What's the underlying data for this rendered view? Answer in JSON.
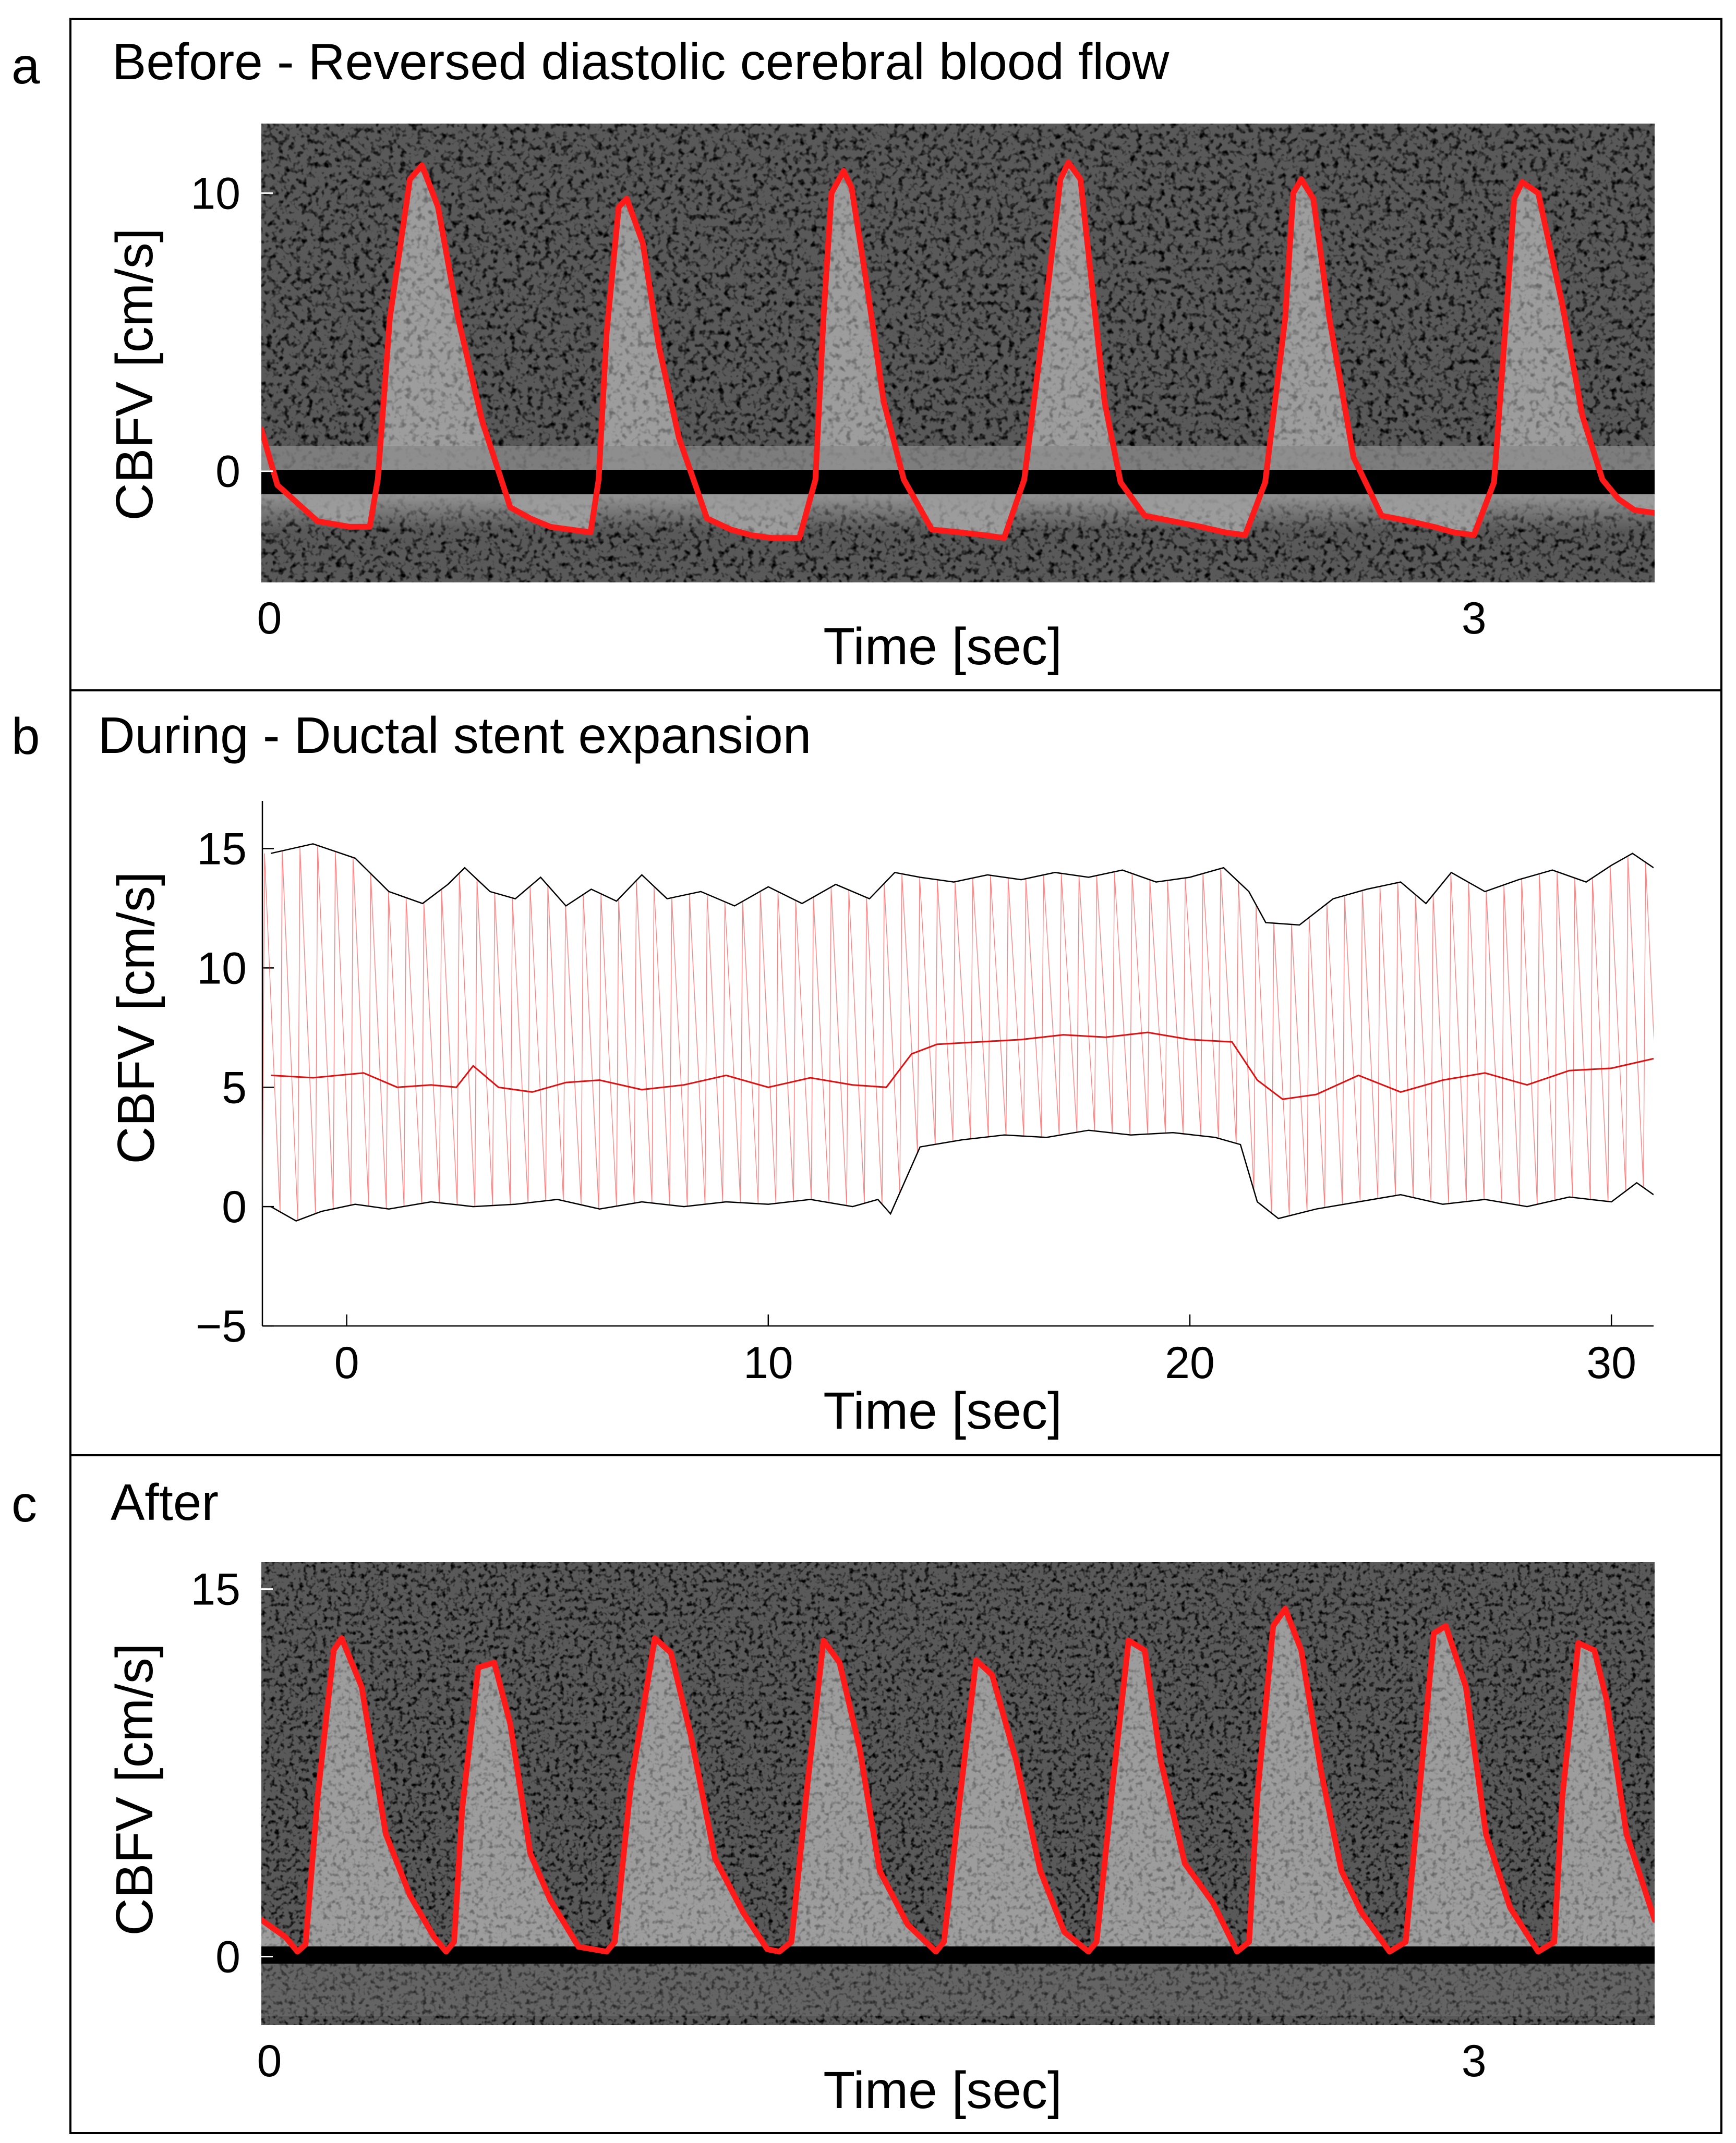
{
  "panels": {
    "a": {
      "letter": "a",
      "title": "Before - Reversed diastolic cerebral blood flow",
      "xlabel": "Time [sec]",
      "ylabel": "CBFV [cm/s]"
    },
    "b": {
      "letter": "b",
      "title": "During - Ductal stent expansion",
      "xlabel": "Time [sec]",
      "ylabel": "CBFV [cm/s]"
    },
    "c": {
      "letter": "c",
      "title": "After",
      "xlabel": "Time [sec]",
      "ylabel": "CBFV [cm/s]"
    }
  },
  "colors": {
    "trace": "#ff1a1a",
    "envelope": "#000000",
    "background": "#000000"
  },
  "chart_data": [
    {
      "id": "a",
      "type": "line",
      "title": "Before - Reversed diastolic cerebral blood flow",
      "xlabel": "Time [sec]",
      "ylabel": "CBFV [cm/s]",
      "xlim": [
        -0.02,
        3.45
      ],
      "ylim": [
        -4,
        12.5
      ],
      "xticks": [
        0,
        3
      ],
      "yticks": [
        0,
        10
      ],
      "background": "Doppler spectrogram",
      "series": [
        {
          "name": "Maximum velocity envelope",
          "x": [
            -0.02,
            0.02,
            0.12,
            0.2,
            0.25,
            0.27,
            0.3,
            0.35,
            0.38,
            0.42,
            0.47,
            0.53,
            0.6,
            0.65,
            0.7,
            0.75,
            0.8,
            0.82,
            0.84,
            0.87,
            0.89,
            0.93,
            0.97,
            1.02,
            1.09,
            1.15,
            1.2,
            1.25,
            1.32,
            1.36,
            1.38,
            1.4,
            1.43,
            1.45,
            1.49,
            1.53,
            1.58,
            1.65,
            1.72,
            1.78,
            1.83,
            1.88,
            1.93,
            1.97,
            1.99,
            2.02,
            2.05,
            2.08,
            2.12,
            2.18,
            2.25,
            2.32,
            2.38,
            2.43,
            2.48,
            2.53,
            2.55,
            2.57,
            2.6,
            2.64,
            2.7,
            2.77,
            2.84,
            2.9,
            2.95,
            3.0,
            3.05,
            3.08,
            3.1,
            3.12,
            3.16,
            3.22,
            3.27,
            3.32,
            3.36,
            3.4,
            3.45
          ],
          "y": [
            1.5,
            -0.5,
            -1.8,
            -2.0,
            -2.0,
            -0.3,
            5.5,
            10.5,
            11.0,
            9.5,
            5.5,
            1.8,
            -1.3,
            -1.7,
            -2.0,
            -2.1,
            -2.2,
            -0.3,
            5.0,
            9.5,
            9.8,
            8.2,
            4.5,
            1.2,
            -1.7,
            -2.1,
            -2.3,
            -2.4,
            -2.4,
            -0.3,
            5.5,
            10.0,
            10.8,
            10.2,
            6.5,
            2.5,
            -0.3,
            -2.1,
            -2.2,
            -2.3,
            -2.4,
            -0.3,
            5.5,
            10.5,
            11.1,
            10.5,
            6.5,
            2.5,
            -0.4,
            -1.6,
            -1.8,
            -2.0,
            -2.2,
            -2.3,
            -0.4,
            5.5,
            10.0,
            10.5,
            9.8,
            5.5,
            0.5,
            -1.6,
            -1.8,
            -2.0,
            -2.2,
            -2.3,
            -0.4,
            5.5,
            9.8,
            10.4,
            10.0,
            6.0,
            2.0,
            -0.3,
            -1.0,
            -1.4,
            -1.5
          ]
        }
      ]
    },
    {
      "id": "b",
      "type": "line",
      "title": "During - Ductal stent expansion",
      "xlabel": "Time [sec]",
      "ylabel": "CBFV [cm/s]",
      "xlim": [
        -2,
        31
      ],
      "ylim": [
        -5,
        17
      ],
      "xticks": [
        0,
        10,
        20,
        30
      ],
      "yticks": [
        -5,
        0,
        5,
        10,
        15
      ],
      "cardiac_cycle_sec": 0.42,
      "series": [
        {
          "name": "Systolic peak envelope",
          "x": [
            -1.8,
            -0.8,
            0.2,
            1.0,
            1.8,
            2.4,
            2.8,
            3.4,
            4.0,
            4.6,
            5.2,
            5.8,
            6.4,
            7.0,
            7.6,
            8.4,
            9.2,
            10.0,
            10.8,
            11.6,
            12.4,
            13.0,
            13.6,
            14.4,
            15.2,
            16.0,
            16.8,
            17.6,
            18.4,
            19.2,
            20.0,
            20.8,
            21.4,
            21.8,
            22.6,
            23.4,
            24.2,
            25.0,
            25.6,
            26.2,
            27.0,
            27.8,
            28.6,
            29.4,
            30.0,
            30.5,
            31.0
          ],
          "y": [
            14.8,
            15.2,
            14.6,
            13.2,
            12.7,
            13.5,
            14.2,
            13.2,
            12.9,
            13.8,
            12.6,
            13.3,
            12.8,
            13.9,
            12.9,
            13.2,
            12.6,
            13.4,
            12.7,
            13.5,
            12.9,
            14.0,
            13.8,
            13.6,
            13.9,
            13.7,
            14.0,
            13.8,
            14.1,
            13.6,
            13.8,
            14.2,
            13.2,
            11.9,
            11.8,
            12.9,
            13.3,
            13.6,
            12.7,
            14.0,
            13.2,
            13.7,
            14.1,
            13.6,
            14.3,
            14.8,
            14.2
          ]
        },
        {
          "name": "Mean velocity",
          "x": [
            -1.8,
            -0.8,
            0.4,
            1.2,
            2.0,
            2.6,
            3.0,
            3.6,
            4.4,
            5.2,
            6.0,
            7.0,
            8.0,
            9.0,
            10.0,
            11.0,
            12.0,
            12.8,
            13.4,
            14.0,
            15.0,
            16.0,
            17.0,
            18.0,
            19.0,
            20.0,
            21.0,
            21.6,
            22.2,
            23.0,
            24.0,
            25.0,
            26.0,
            27.0,
            28.0,
            29.0,
            30.0,
            31.0
          ],
          "y": [
            5.5,
            5.4,
            5.6,
            5.0,
            5.1,
            5.0,
            5.9,
            5.0,
            4.8,
            5.2,
            5.3,
            4.9,
            5.1,
            5.5,
            5.0,
            5.4,
            5.1,
            5.0,
            6.4,
            6.8,
            6.9,
            7.0,
            7.2,
            7.1,
            7.3,
            7.0,
            6.9,
            5.3,
            4.5,
            4.7,
            5.5,
            4.8,
            5.3,
            5.6,
            5.1,
            5.7,
            5.8,
            6.2
          ]
        },
        {
          "name": "Diastolic minimum envelope",
          "x": [
            -1.8,
            -1.2,
            -0.6,
            0.2,
            1.0,
            2.0,
            3.0,
            4.0,
            5.0,
            6.0,
            7.0,
            8.0,
            9.0,
            10.0,
            11.0,
            12.0,
            12.6,
            12.9,
            13.6,
            14.6,
            15.6,
            16.6,
            17.6,
            18.6,
            19.6,
            20.6,
            21.2,
            21.6,
            22.1,
            23.0,
            24.0,
            25.0,
            26.0,
            27.0,
            28.0,
            29.0,
            30.0,
            30.6,
            31.0
          ],
          "y": [
            0,
            -0.6,
            -0.2,
            0.1,
            -0.1,
            0.2,
            0.0,
            0.1,
            0.3,
            -0.1,
            0.2,
            0.0,
            0.2,
            0.1,
            0.3,
            0.0,
            0.3,
            -0.3,
            2.5,
            2.8,
            3.0,
            2.9,
            3.2,
            3.0,
            3.1,
            2.9,
            2.6,
            0.2,
            -0.5,
            -0.1,
            0.2,
            0.5,
            0.1,
            0.3,
            0.0,
            0.4,
            0.2,
            1.0,
            0.5
          ]
        }
      ]
    },
    {
      "id": "c",
      "type": "line",
      "title": "After",
      "xlabel": "Time [sec]",
      "ylabel": "CBFV [cm/s]",
      "xlim": [
        -0.02,
        3.45
      ],
      "ylim": [
        -2.8,
        16.1
      ],
      "xticks": [
        0,
        3
      ],
      "yticks": [
        0,
        15
      ],
      "background": "Doppler spectrogram",
      "series": [
        {
          "name": "Maximum velocity envelope",
          "x": [
            -0.02,
            0.04,
            0.07,
            0.09,
            0.12,
            0.16,
            0.18,
            0.23,
            0.29,
            0.35,
            0.41,
            0.44,
            0.46,
            0.48,
            0.52,
            0.56,
            0.6,
            0.65,
            0.7,
            0.77,
            0.84,
            0.86,
            0.9,
            0.96,
            1.0,
            1.05,
            1.11,
            1.18,
            1.24,
            1.27,
            1.3,
            1.34,
            1.38,
            1.42,
            1.47,
            1.52,
            1.59,
            1.66,
            1.68,
            1.72,
            1.76,
            1.8,
            1.86,
            1.92,
            1.98,
            2.04,
            2.06,
            2.1,
            2.14,
            2.18,
            2.22,
            2.28,
            2.35,
            2.41,
            2.44,
            2.46,
            2.5,
            2.53,
            2.57,
            2.62,
            2.67,
            2.72,
            2.79,
            2.83,
            2.86,
            2.9,
            2.93,
            2.98,
            3.03,
            3.09,
            3.16,
            3.2,
            3.22,
            3.26,
            3.3,
            3.33,
            3.38,
            3.45
          ],
          "y": [
            1.5,
            0.8,
            0.2,
            0.5,
            6.5,
            12.5,
            13.0,
            11.0,
            5.0,
            2.5,
            0.8,
            0.2,
            0.6,
            6.0,
            11.8,
            12.0,
            9.5,
            4.2,
            2.3,
            0.4,
            0.2,
            0.6,
            7.0,
            13.0,
            12.4,
            9.0,
            4.0,
            1.8,
            0.3,
            0.2,
            0.6,
            7.0,
            12.9,
            12.0,
            8.5,
            3.5,
            1.3,
            0.2,
            0.6,
            6.5,
            12.1,
            11.5,
            8.0,
            3.5,
            1.0,
            0.2,
            0.6,
            7.0,
            12.9,
            12.5,
            8.0,
            3.8,
            2.2,
            0.2,
            0.6,
            6.5,
            13.5,
            14.2,
            12.5,
            7.5,
            3.5,
            1.8,
            0.2,
            0.6,
            6.0,
            13.2,
            13.5,
            11.0,
            5.0,
            2.0,
            0.2,
            0.6,
            6.5,
            12.8,
            12.5,
            10.5,
            5.0,
            1.5
          ]
        }
      ]
    }
  ]
}
